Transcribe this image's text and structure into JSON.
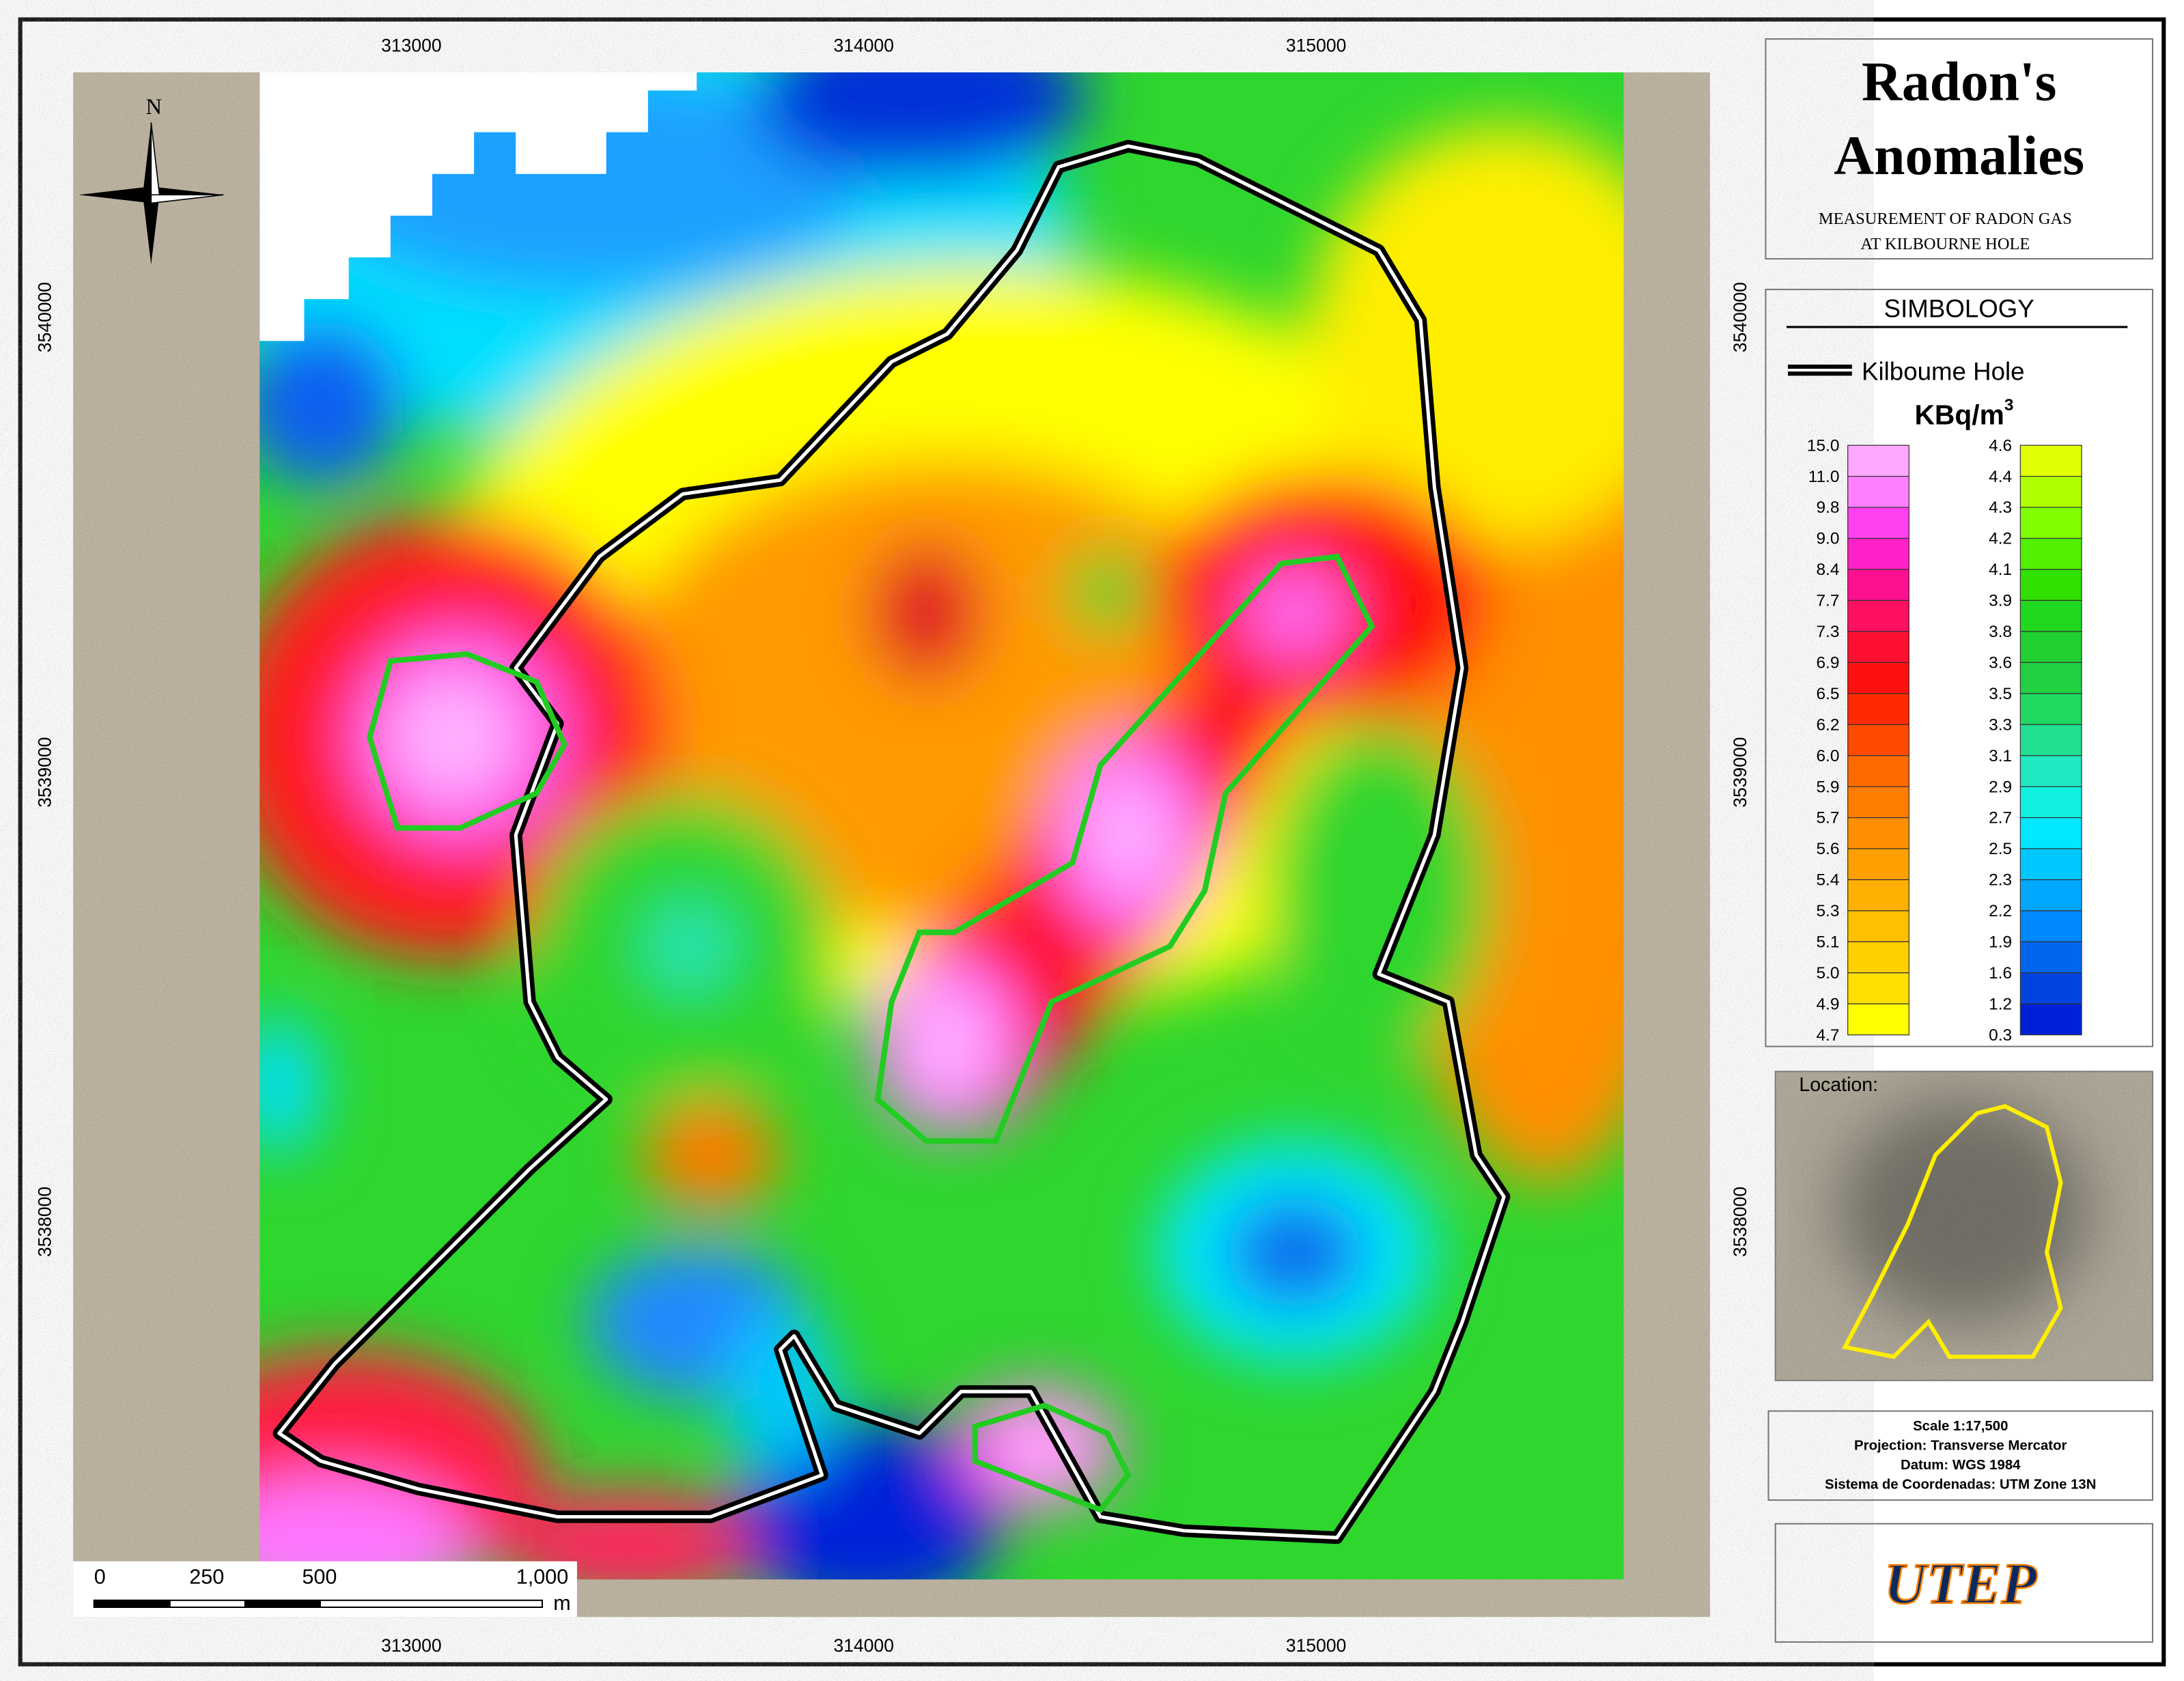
{
  "title": [
    "Radon's",
    "Anomalies"
  ],
  "subtitle": [
    "MEASUREMENT OF RADON GAS",
    "AT KILBOURNE HOLE"
  ],
  "grid_labels": {
    "top": [
      "313000",
      "314000",
      "315000"
    ],
    "bottom": [
      "313000",
      "314000",
      "315000"
    ],
    "left": [
      "3540000",
      "3539000",
      "3538000"
    ],
    "right": [
      "3540000",
      "3539000",
      "3538000"
    ]
  },
  "north": "N",
  "scale_bar": {
    "labels": [
      "0",
      "250",
      "500",
      "1,000"
    ],
    "unit": "m"
  },
  "symbology": {
    "heading": "SIMBOLOGY",
    "outline_label": "Kilboume Hole",
    "unit": "KBq/m",
    "unit_exp": "3",
    "left_labels": [
      "15.0",
      "11.0",
      "9.8",
      "9.0",
      "8.4",
      "7.7",
      "7.3",
      "6.9",
      "6.5",
      "6.2",
      "6.0",
      "5.9",
      "5.7",
      "5.6",
      "5.4",
      "5.3",
      "5.1",
      "5.0",
      "4.9",
      "4.7"
    ],
    "left_colors": [
      "#ffa8ff",
      "#ff80ff",
      "#ff40f0",
      "#ff20c8",
      "#ff1090",
      "#ff1060",
      "#ff1030",
      "#ff1010",
      "#ff2a00",
      "#ff4a00",
      "#ff6a00",
      "#ff7d00",
      "#ff8f00",
      "#ffa000",
      "#ffb000",
      "#ffc000",
      "#ffd000",
      "#ffe000",
      "#ffff00"
    ],
    "right_labels": [
      "4.6",
      "4.4",
      "4.3",
      "4.2",
      "4.1",
      "3.9",
      "3.8",
      "3.6",
      "3.5",
      "3.3",
      "3.1",
      "2.9",
      "2.7",
      "2.5",
      "2.3",
      "2.2",
      "1.9",
      "1.6",
      "1.2",
      "0.3"
    ],
    "right_colors": [
      "#e0ff00",
      "#b0ff00",
      "#80ff00",
      "#50f000",
      "#30e000",
      "#20d820",
      "#20d030",
      "#20d040",
      "#20d860",
      "#20e090",
      "#20e8c0",
      "#10f0e0",
      "#00e8ff",
      "#00c8ff",
      "#00a8ff",
      "#0088ff",
      "#0066f0",
      "#0044e0",
      "#0020d8"
    ]
  },
  "location_label": "Location:",
  "info": [
    "Scale 1:17,500",
    "Projection: Transverse Mercator",
    "Datum: WGS 1984",
    "Sistema de Coordenadas: UTM Zone 13N"
  ],
  "logo": "UTEP"
}
